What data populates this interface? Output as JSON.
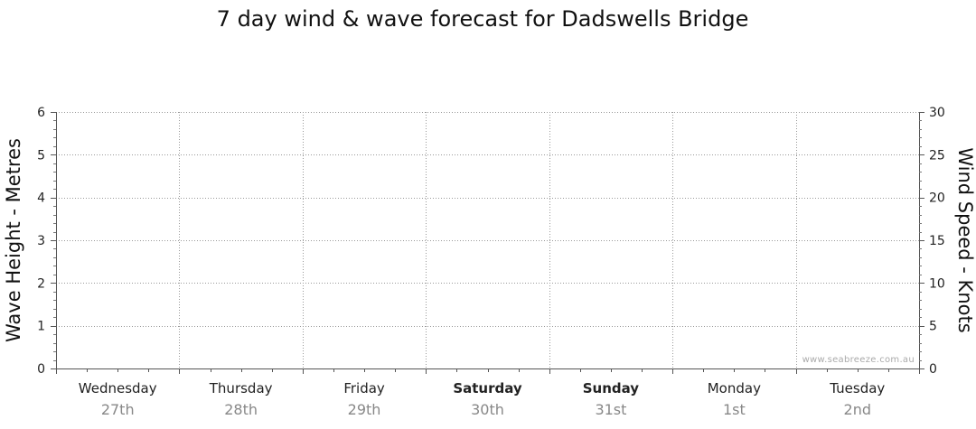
{
  "chart_data": {
    "type": "line",
    "title": "7 day wind & wave forecast for Dadswells Bridge",
    "y_left": {
      "label": "Wave Height - Metres",
      "range": [
        0,
        6
      ],
      "ticks": [
        0,
        1,
        2,
        3,
        4,
        5,
        6
      ]
    },
    "y_right": {
      "label": "Wind Speed - Knots",
      "range": [
        0,
        30
      ],
      "ticks": [
        0,
        5,
        10,
        15,
        20,
        25,
        30
      ]
    },
    "days": [
      {
        "name": "Wednesday",
        "date": "27th",
        "weekend": false
      },
      {
        "name": "Thursday",
        "date": "28th",
        "weekend": false
      },
      {
        "name": "Friday",
        "date": "29th",
        "weekend": false
      },
      {
        "name": "Saturday",
        "date": "30th",
        "weekend": true
      },
      {
        "name": "Sunday",
        "date": "31st",
        "weekend": true
      },
      {
        "name": "Monday",
        "date": "1st",
        "weekend": false
      },
      {
        "name": "Tuesday",
        "date": "2nd",
        "weekend": false
      }
    ],
    "series": [],
    "grid": true
  },
  "watermark": "www.seabreeze.com.au"
}
